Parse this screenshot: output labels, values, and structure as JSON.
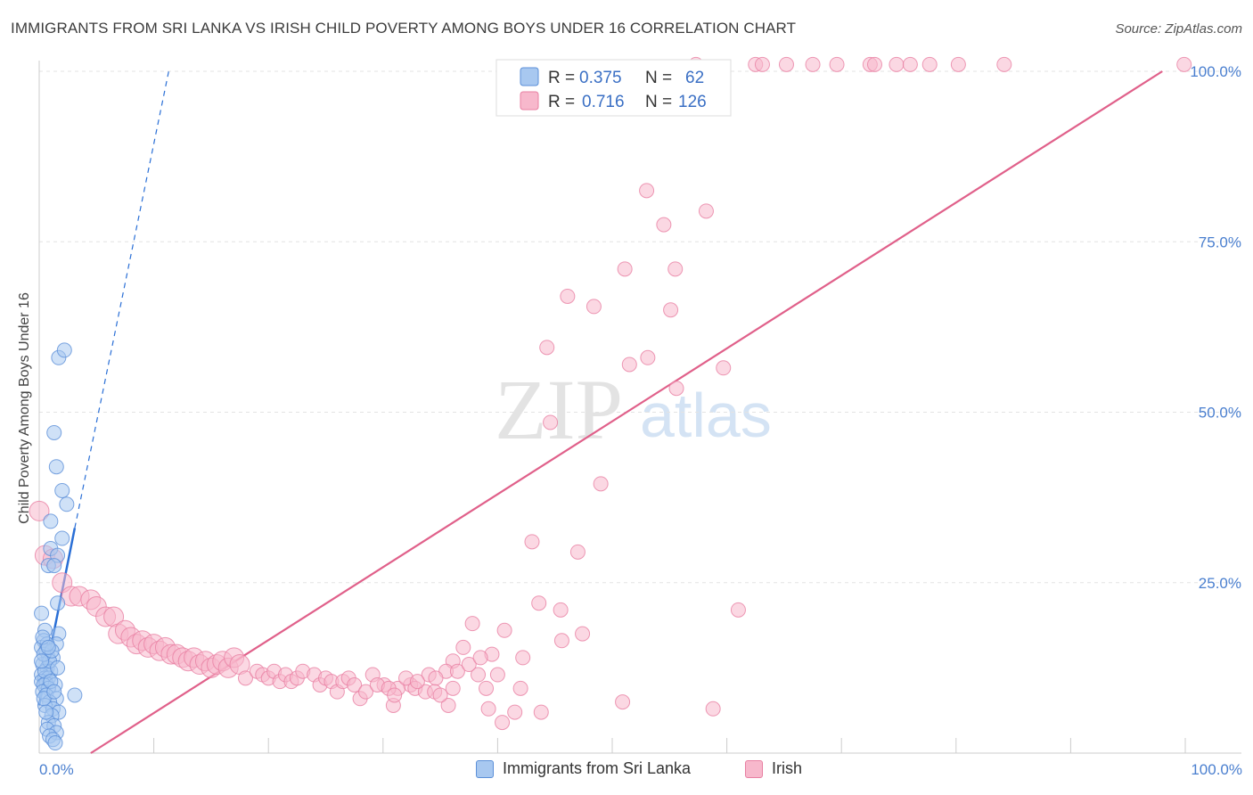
{
  "chart_data": {
    "type": "scatter",
    "title": "IMMIGRANTS FROM SRI LANKA VS IRISH CHILD POVERTY AMONG BOYS UNDER 16 CORRELATION CHART",
    "source": "Source: ZipAtlas.com",
    "ylabel": "Child Poverty Among Boys Under 16",
    "xlabel": "",
    "xlim": [
      0,
      100
    ],
    "ylim": [
      0,
      100
    ],
    "x_tick_labels": [
      "0.0%",
      "100.0%"
    ],
    "y_tick_labels": [
      "100.0%",
      "75.0%",
      "50.0%",
      "25.0%"
    ],
    "y_tick_values": [
      100,
      75,
      50,
      25
    ],
    "watermark": {
      "zip": "ZIP",
      "atlas": "atlas"
    },
    "legend": [
      {
        "r_label": "R =",
        "r_value": "0.375",
        "n_label": "N =",
        "n_value": "62"
      },
      {
        "r_label": "R =",
        "r_value": "0.716",
        "n_label": "N =",
        "n_value": "126"
      }
    ],
    "series": [
      {
        "name": "Immigrants from Sri Lanka",
        "fill": "#a8c8f0",
        "stroke": "#5b8fd8",
        "trend_color": "#2a6fd6",
        "trend": {
          "x0": 0.0,
          "y0": 7.0,
          "x1": 3.1,
          "y1": 33.0,
          "x_dash_end": 11.3,
          "y_dash_end": 100.0
        },
        "points": [
          [
            1.7,
            58.0
          ],
          [
            2.2,
            59.1
          ],
          [
            1.3,
            47.0
          ],
          [
            1.5,
            42.0
          ],
          [
            2.0,
            38.5
          ],
          [
            2.4,
            36.5
          ],
          [
            1.0,
            34.0
          ],
          [
            2.0,
            31.5
          ],
          [
            1.0,
            30.0
          ],
          [
            1.6,
            29.0
          ],
          [
            0.8,
            27.5
          ],
          [
            1.3,
            27.5
          ],
          [
            1.6,
            22.0
          ],
          [
            0.2,
            20.5
          ],
          [
            0.5,
            18.0
          ],
          [
            1.7,
            17.5
          ],
          [
            0.4,
            16.5
          ],
          [
            1.5,
            16.0
          ],
          [
            0.2,
            15.5
          ],
          [
            0.6,
            15.0
          ],
          [
            0.8,
            14.0
          ],
          [
            1.2,
            14.0
          ],
          [
            0.3,
            13.0
          ],
          [
            0.7,
            12.5
          ],
          [
            1.0,
            12.0
          ],
          [
            0.2,
            11.5
          ],
          [
            0.5,
            11.0
          ],
          [
            0.8,
            11.0
          ],
          [
            0.2,
            10.5
          ],
          [
            0.6,
            10.2
          ],
          [
            0.4,
            10.0
          ],
          [
            1.4,
            10.0
          ],
          [
            0.8,
            9.5
          ],
          [
            0.3,
            9.0
          ],
          [
            3.1,
            8.5
          ],
          [
            0.6,
            8.5
          ],
          [
            1.5,
            8.0
          ],
          [
            0.9,
            7.5
          ],
          [
            0.5,
            7.0
          ],
          [
            1.2,
            6.5
          ],
          [
            1.7,
            6.0
          ],
          [
            1.1,
            5.5
          ],
          [
            0.8,
            4.5
          ],
          [
            1.3,
            4.0
          ],
          [
            0.7,
            3.5
          ],
          [
            1.5,
            3.0
          ],
          [
            0.9,
            2.5
          ],
          [
            1.2,
            2.0
          ],
          [
            1.4,
            1.5
          ],
          [
            0.5,
            12.0
          ],
          [
            0.9,
            13.5
          ],
          [
            0.4,
            14.5
          ],
          [
            1.1,
            15.0
          ],
          [
            0.7,
            16.0
          ],
          [
            0.3,
            17.0
          ],
          [
            1.6,
            12.5
          ],
          [
            0.4,
            8.0
          ],
          [
            1.0,
            10.5
          ],
          [
            0.6,
            6.0
          ],
          [
            1.3,
            9.0
          ],
          [
            0.2,
            13.5
          ],
          [
            0.8,
            15.5
          ]
        ]
      },
      {
        "name": "Irish",
        "fill": "#f7b8cc",
        "stroke": "#e87fa2",
        "trend_color": "#e0608a",
        "trend": {
          "x0": 4.5,
          "y0": 0.0,
          "x1": 98.0,
          "y1": 100.0
        },
        "points": [
          [
            57.3,
            101.0
          ],
          [
            62.5,
            101.0
          ],
          [
            63.1,
            101.0
          ],
          [
            65.2,
            101.0
          ],
          [
            67.5,
            101.0
          ],
          [
            69.6,
            101.0
          ],
          [
            72.5,
            101.0
          ],
          [
            72.9,
            101.0
          ],
          [
            74.8,
            101.0
          ],
          [
            76.0,
            101.0
          ],
          [
            77.7,
            101.0
          ],
          [
            80.2,
            101.0
          ],
          [
            84.2,
            101.0
          ],
          [
            99.9,
            101.0
          ],
          [
            53.0,
            82.5
          ],
          [
            54.5,
            77.5
          ],
          [
            58.2,
            79.5
          ],
          [
            51.1,
            71.0
          ],
          [
            55.5,
            71.0
          ],
          [
            46.1,
            67.0
          ],
          [
            48.4,
            65.5
          ],
          [
            55.1,
            65.0
          ],
          [
            44.3,
            59.5
          ],
          [
            53.1,
            58.0
          ],
          [
            51.5,
            57.0
          ],
          [
            59.7,
            56.5
          ],
          [
            55.6,
            53.5
          ],
          [
            44.6,
            48.5
          ],
          [
            49.0,
            39.5
          ],
          [
            43.0,
            31.0
          ],
          [
            47.0,
            29.5
          ],
          [
            43.6,
            22.0
          ],
          [
            45.5,
            21.0
          ],
          [
            61.0,
            21.0
          ],
          [
            37.8,
            19.0
          ],
          [
            40.6,
            18.0
          ],
          [
            47.4,
            17.5
          ],
          [
            45.6,
            16.5
          ],
          [
            37.0,
            15.5
          ],
          [
            39.5,
            14.5
          ],
          [
            42.2,
            14.0
          ],
          [
            36.1,
            13.5
          ],
          [
            35.5,
            12.0
          ],
          [
            38.3,
            11.5
          ],
          [
            34.0,
            11.5
          ],
          [
            34.6,
            11.0
          ],
          [
            29.1,
            11.5
          ],
          [
            32.4,
            10.0
          ],
          [
            30.1,
            10.0
          ],
          [
            32.8,
            9.5
          ],
          [
            31.3,
            9.5
          ],
          [
            33.7,
            9.0
          ],
          [
            36.1,
            9.5
          ],
          [
            39.0,
            9.5
          ],
          [
            42.0,
            9.5
          ],
          [
            35.7,
            7.0
          ],
          [
            30.9,
            7.0
          ],
          [
            39.2,
            6.5
          ],
          [
            41.5,
            6.0
          ],
          [
            43.8,
            6.0
          ],
          [
            50.9,
            7.5
          ],
          [
            58.8,
            6.5
          ],
          [
            40.4,
            4.5
          ],
          [
            0.0,
            35.5
          ],
          [
            0.5,
            29.0
          ],
          [
            1.2,
            28.5
          ],
          [
            2.0,
            25.0
          ],
          [
            2.8,
            23.0
          ],
          [
            3.5,
            23.0
          ],
          [
            4.5,
            22.5
          ],
          [
            5.0,
            21.5
          ],
          [
            5.8,
            20.0
          ],
          [
            6.5,
            20.0
          ],
          [
            6.9,
            17.5
          ],
          [
            7.5,
            18.0
          ],
          [
            8.0,
            17.0
          ],
          [
            8.5,
            16.0
          ],
          [
            9.0,
            16.5
          ],
          [
            9.5,
            15.5
          ],
          [
            10.0,
            16.0
          ],
          [
            10.5,
            15.0
          ],
          [
            11.0,
            15.5
          ],
          [
            11.5,
            14.5
          ],
          [
            12.0,
            14.5
          ],
          [
            12.5,
            14.0
          ],
          [
            13.0,
            13.5
          ],
          [
            13.5,
            14.0
          ],
          [
            14.0,
            13.0
          ],
          [
            14.5,
            13.5
          ],
          [
            15.0,
            12.5
          ],
          [
            15.5,
            13.0
          ],
          [
            16.0,
            13.5
          ],
          [
            16.5,
            12.5
          ],
          [
            17.0,
            14.0
          ],
          [
            17.5,
            13.0
          ],
          [
            18.0,
            11.0
          ],
          [
            19.0,
            12.0
          ],
          [
            19.5,
            11.5
          ],
          [
            20.0,
            11.0
          ],
          [
            20.5,
            12.0
          ],
          [
            21.0,
            10.5
          ],
          [
            21.5,
            11.5
          ],
          [
            22.0,
            10.5
          ],
          [
            22.5,
            11.0
          ],
          [
            23.0,
            12.0
          ],
          [
            24.0,
            11.5
          ],
          [
            24.5,
            10.0
          ],
          [
            25.0,
            11.0
          ],
          [
            25.5,
            10.5
          ],
          [
            26.0,
            9.0
          ],
          [
            26.5,
            10.5
          ],
          [
            27.0,
            11.0
          ],
          [
            27.5,
            10.0
          ],
          [
            28.0,
            8.0
          ],
          [
            28.5,
            9.0
          ],
          [
            29.5,
            10.0
          ],
          [
            30.5,
            9.5
          ],
          [
            31.0,
            8.5
          ],
          [
            32.0,
            11.0
          ],
          [
            33.0,
            10.5
          ],
          [
            34.5,
            9.0
          ],
          [
            35.0,
            8.5
          ],
          [
            36.5,
            12.0
          ],
          [
            37.5,
            13.0
          ],
          [
            38.5,
            14.0
          ],
          [
            40.0,
            11.5
          ]
        ]
      }
    ]
  }
}
